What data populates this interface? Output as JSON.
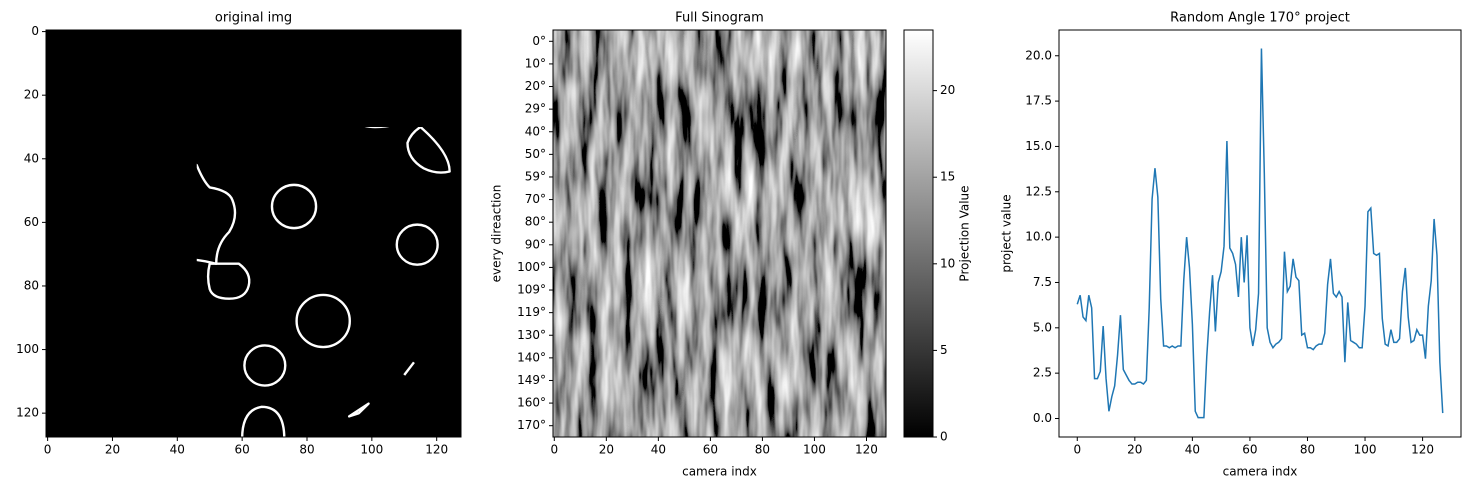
{
  "chart_data": [
    {
      "type": "image",
      "title": "original img",
      "xlim": [
        -0.5,
        127.5
      ],
      "ylim": [
        127.5,
        -0.5
      ],
      "xticks": [
        0,
        20,
        40,
        60,
        80,
        100,
        120
      ],
      "yticks": [
        0,
        20,
        40,
        60,
        80,
        100,
        120
      ]
    },
    {
      "type": "heatmap",
      "title": "Full Sinogram",
      "xlabel": "camera indx",
      "ylabel": "every direaction",
      "xlim": [
        -0.5,
        127.5
      ],
      "xticks": [
        0,
        20,
        40,
        60,
        80,
        100,
        120
      ],
      "categories": [
        "0°",
        "10°",
        "20°",
        "29°",
        "40°",
        "50°",
        "59°",
        "70°",
        "80°",
        "90°",
        "100°",
        "109°",
        "119°",
        "130°",
        "140°",
        "149°",
        "160°",
        "170°"
      ],
      "colorbar": {
        "label": "Projection Value",
        "lim": [
          0,
          23.5
        ],
        "ticks": [
          0,
          5,
          10,
          15,
          20
        ],
        "colors": [
          "#000000",
          "#ffffff"
        ]
      }
    },
    {
      "type": "line",
      "title": "Random Angle 170° project",
      "xlabel": "camera indx",
      "ylabel": "project value",
      "color": "#1f77b4",
      "x": [
        0,
        1,
        2,
        3,
        4,
        5,
        6,
        7,
        8,
        9,
        10,
        11,
        12,
        13,
        14,
        15,
        16,
        17,
        18,
        19,
        20,
        21,
        22,
        23,
        24,
        25,
        26,
        27,
        28,
        29,
        30,
        31,
        32,
        33,
        34,
        35,
        36,
        37,
        38,
        39,
        40,
        41,
        42,
        43,
        44,
        45,
        46,
        47,
        48,
        49,
        50,
        51,
        52,
        53,
        54,
        55,
        56,
        57,
        58,
        59,
        60,
        61,
        62,
        63,
        64,
        65,
        66,
        67,
        68,
        69,
        70,
        71,
        72,
        73,
        74,
        75,
        76,
        77,
        78,
        79,
        80,
        81,
        82,
        83,
        84,
        85,
        86,
        87,
        88,
        89,
        90,
        91,
        92,
        93,
        94,
        95,
        96,
        97,
        98,
        99,
        100,
        101,
        102,
        103,
        104,
        105,
        106,
        107,
        108,
        109,
        110,
        111,
        112,
        113,
        114,
        115,
        116,
        117,
        118,
        119,
        120,
        121,
        122,
        123,
        124,
        125,
        126,
        127
      ],
      "values": [
        6.3,
        6.8,
        5.6,
        5.4,
        6.8,
        6.1,
        2.2,
        2.2,
        2.6,
        5.1,
        2.2,
        0.4,
        1.2,
        1.8,
        3.5,
        5.7,
        2.7,
        2.4,
        2.1,
        1.9,
        1.9,
        2.0,
        2.0,
        1.9,
        2.1,
        6.1,
        12.1,
        13.8,
        12.2,
        6.6,
        4.0,
        4.0,
        3.9,
        4.0,
        3.9,
        4.0,
        4.0,
        7.6,
        10.0,
        8.3,
        5.2,
        0.4,
        0.05,
        0.05,
        0.05,
        3.4,
        5.9,
        7.9,
        4.8,
        7.5,
        8.1,
        9.5,
        15.3,
        9.4,
        9.1,
        8.5,
        6.7,
        10.0,
        7.5,
        10.1,
        5.0,
        4.0,
        4.9,
        6.9,
        20.4,
        13.5,
        5.0,
        4.2,
        3.9,
        4.1,
        4.2,
        4.4,
        9.2,
        7.0,
        7.3,
        8.8,
        7.8,
        7.6,
        4.6,
        4.7,
        3.9,
        3.9,
        3.8,
        4.0,
        4.1,
        4.1,
        4.7,
        7.4,
        8.8,
        6.9,
        6.7,
        7.0,
        6.7,
        3.1,
        6.4,
        4.3,
        4.2,
        4.1,
        3.9,
        3.9,
        6.2,
        11.4,
        11.6,
        9.1,
        9.0,
        9.1,
        5.5,
        4.1,
        4.0,
        4.9,
        4.2,
        4.2,
        4.4,
        7.0,
        8.3,
        5.6,
        4.2,
        4.3,
        4.9,
        4.6,
        4.6,
        3.3,
        6.2,
        7.6,
        11.0,
        9.0,
        3.1,
        0.3
      ],
      "xlim": [
        -6.35,
        133.35
      ],
      "ylim": [
        -1.02,
        21.42
      ],
      "xticks": [
        0,
        20,
        40,
        60,
        80,
        100,
        120
      ],
      "yticks": [
        {
          "value": 0,
          "label": "0.0"
        },
        {
          "value": 2.5,
          "label": "2.5"
        },
        {
          "value": 5,
          "label": "5.0"
        },
        {
          "value": 7.5,
          "label": "7.5"
        },
        {
          "value": 10,
          "label": "10.0"
        },
        {
          "value": 12.5,
          "label": "12.5"
        },
        {
          "value": 15,
          "label": "15.0"
        },
        {
          "value": 17.5,
          "label": "17.5"
        },
        {
          "value": 20,
          "label": "20.0"
        }
      ]
    }
  ]
}
